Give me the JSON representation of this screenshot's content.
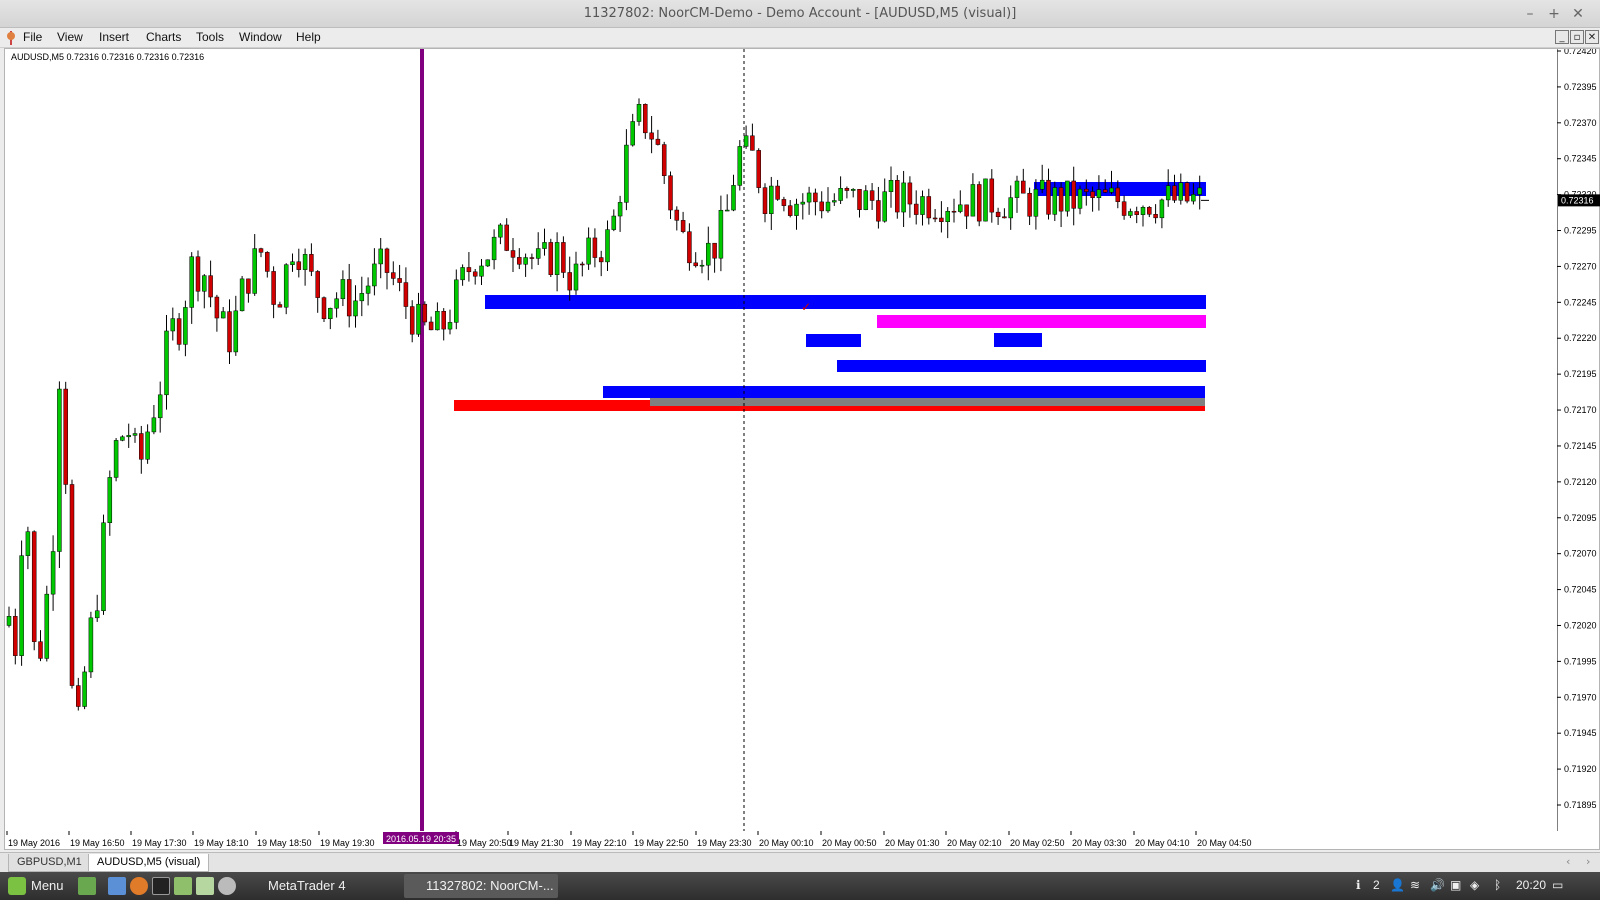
{
  "window": {
    "title": "11327802: NoorCM-Demo - Demo Account - [AUDUSD,M5 (visual)]",
    "controls": [
      "–",
      "+",
      "✕"
    ]
  },
  "menu": {
    "items": [
      "File",
      "View",
      "Insert",
      "Charts",
      "Tools",
      "Window",
      "Help"
    ],
    "mdi_controls": [
      "_",
      "▫",
      "✕"
    ]
  },
  "chart": {
    "info": "AUDUSD,M5  0.72316 0.72316 0.72316 0.72316",
    "current_price": "0.72316",
    "price_labels": [
      "0.72420",
      "0.72395",
      "0.72370",
      "0.72345",
      "0.72320",
      "0.72295",
      "0.72270",
      "0.72245",
      "0.72220",
      "0.72195",
      "0.72170",
      "0.72145",
      "0.72120",
      "0.72095",
      "0.72070",
      "0.72045",
      "0.72020",
      "0.71995",
      "0.71970",
      "0.71945",
      "0.71920",
      "0.71895"
    ],
    "time_labels": [
      "19 May 2016",
      "19 May 16:50",
      "19 May 17:30",
      "19 May 18:10",
      "19 May 18:50",
      "19 May 19:30",
      "19 May 20:50",
      "19 May 21:30",
      "19 May 22:10",
      "19 May 22:50",
      "19 May 23:30",
      "20 May 00:10",
      "20 May 00:50",
      "20 May 01:30",
      "20 May 02:10",
      "20 May 02:50",
      "20 May 03:30",
      "20 May 04:10",
      "20 May 04:50"
    ],
    "cursor_time_label": "2016.05.19 20:35",
    "colors": {
      "bull": "#00c800",
      "bear": "#d00000",
      "zone_blue": "#0000ff",
      "zone_magenta": "#ff00ff",
      "zone_red": "#ff0000",
      "zone_gray": "#808080",
      "vline": "#800080"
    }
  },
  "tabs": [
    {
      "label": "GBPUSD,M1",
      "active": false
    },
    {
      "label": "AUDUSD,M5 (visual)",
      "active": true
    }
  ],
  "taskbar": {
    "menu_label": "Menu",
    "tasks": [
      "MetaTrader 4",
      "11327802: NoorCM-..."
    ],
    "tray_count": "2",
    "clock": "20:20"
  }
}
